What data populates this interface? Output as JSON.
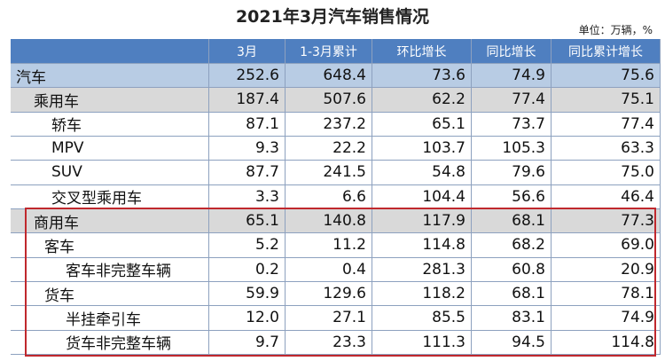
{
  "title": "2021年3月汽车销售情况",
  "unit": "单位：万辆，%",
  "table": {
    "columns": [
      "3月",
      "1-3月累计",
      "环比增长",
      "同比增长",
      "同比累计增长"
    ],
    "rows": [
      [
        "汽车",
        "252.6",
        "648.4",
        "73.6",
        "74.9",
        "75.6"
      ],
      [
        "乘用车",
        "187.4",
        "507.6",
        "62.2",
        "77.4",
        "75.1"
      ],
      [
        "轿车",
        "87.1",
        "237.2",
        "65.1",
        "73.7",
        "77.4"
      ],
      [
        "MPV",
        "9.3",
        "22.2",
        "103.7",
        "105.3",
        "63.3"
      ],
      [
        "SUV",
        "87.7",
        "241.5",
        "54.8",
        "79.6",
        "75.0"
      ],
      [
        "交叉型乘用车",
        "3.3",
        "6.6",
        "104.4",
        "56.6",
        "46.4"
      ],
      [
        "商用车",
        "65.1",
        "140.8",
        "117.9",
        "68.1",
        "77.3"
      ],
      [
        "客车",
        "5.2",
        "11.2",
        "114.8",
        "68.2",
        "69.0"
      ],
      [
        "客车非完整车辆",
        "0.2",
        "0.4",
        "281.3",
        "60.8",
        "20.9"
      ],
      [
        "货车",
        "59.9",
        "129.6",
        "118.2",
        "68.1",
        "78.1"
      ],
      [
        "半挂牵引车",
        "12.0",
        "27.1",
        "85.5",
        "83.1",
        "74.9"
      ],
      [
        "货车非完整车辆",
        "9.7",
        "23.3",
        "111.3",
        "94.5",
        "114.8"
      ]
    ]
  }
}
